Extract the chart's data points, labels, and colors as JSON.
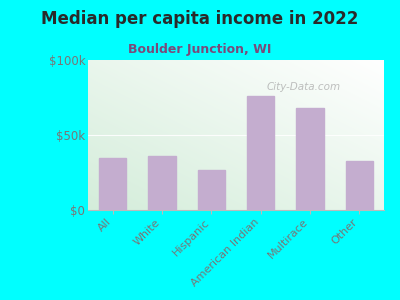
{
  "title": "Median per capita income in 2022",
  "subtitle": "Boulder Junction, WI",
  "title_color": "#2a2a2a",
  "subtitle_color": "#7a4a7a",
  "background_color": "#00FFFF",
  "bar_color": "#C4ADCF",
  "categories": [
    "All",
    "White",
    "Hispanic",
    "American Indian",
    "Multirace",
    "Other"
  ],
  "values": [
    35000,
    36000,
    27000,
    76000,
    68000,
    33000
  ],
  "ylim": [
    0,
    100000
  ],
  "yticks": [
    0,
    50000,
    100000
  ],
  "ytick_labels": [
    "$0",
    "$50k",
    "$100k"
  ],
  "tick_color": "#777777",
  "xlabel_color": "#777777",
  "watermark": "City-Data.com",
  "figsize": [
    4.0,
    3.0
  ],
  "dpi": 100
}
